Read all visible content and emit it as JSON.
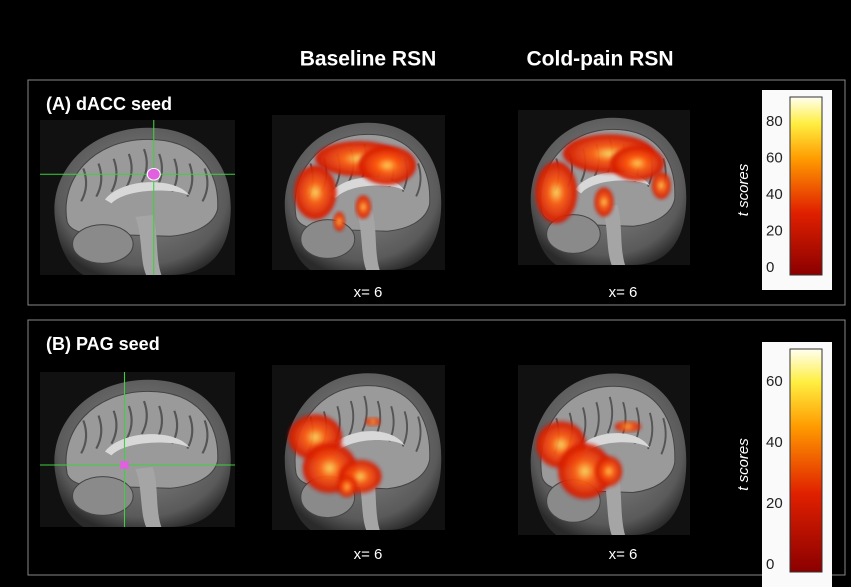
{
  "columns": [
    "Baseline RSN",
    "Cold-pain RSN"
  ],
  "panels": [
    {
      "label": "(A) dACC seed",
      "coords": [
        "x= 6",
        "x= 6"
      ],
      "colorbar": {
        "label": "t scores",
        "ticks": [
          80,
          60,
          40,
          20,
          0
        ]
      }
    },
    {
      "label": "(B) PAG seed",
      "coords": [
        "x= 6",
        "x= 6"
      ],
      "colorbar": {
        "label": "t scores",
        "ticks": [
          60,
          40,
          20,
          0
        ]
      }
    }
  ]
}
